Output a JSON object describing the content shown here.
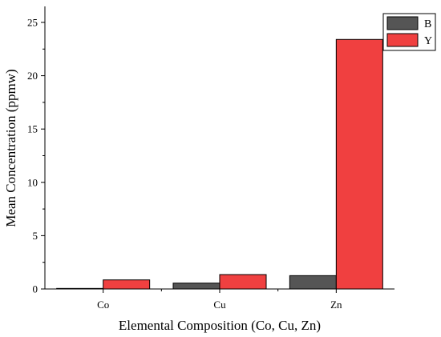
{
  "chart_data": {
    "type": "bar",
    "title": "",
    "xlabel": "Elemental Composition (Co, Cu, Zn)",
    "ylabel": "Mean Concentration (ppmw)",
    "categories": [
      "Co",
      "Cu",
      "Zn"
    ],
    "series": [
      {
        "name": "B",
        "values": [
          0.05,
          0.55,
          1.25
        ],
        "color": "#555555"
      },
      {
        "name": "Y",
        "values": [
          0.85,
          1.35,
          23.4
        ],
        "color": "#f04040"
      }
    ],
    "ylim": [
      0,
      26.5
    ],
    "yticks": [
      0,
      5,
      10,
      15,
      20,
      25
    ],
    "grid": false,
    "legend_position": "top-right"
  }
}
